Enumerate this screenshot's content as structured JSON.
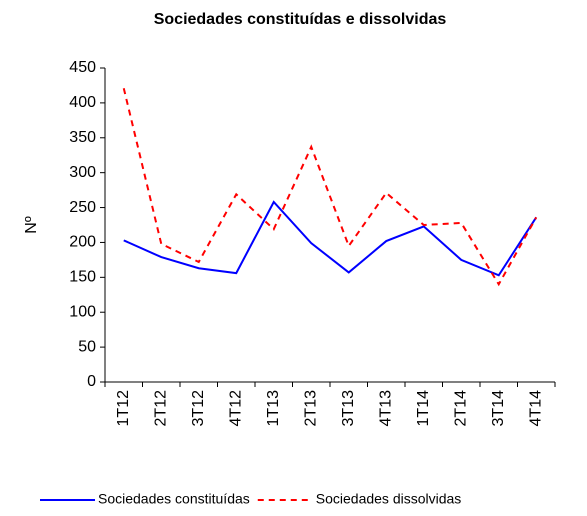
{
  "chart_data": {
    "type": "line",
    "title": "Sociedades constituídas e dissolvidas",
    "y_label": "Nº",
    "categories": [
      "1T12",
      "2T12",
      "3T12",
      "4T12",
      "1T13",
      "2T13",
      "3T13",
      "4T13",
      "1T14",
      "2T14",
      "3T14",
      "4T14"
    ],
    "series": [
      {
        "name": "Sociedades constituídas",
        "color": "#0000ff",
        "dash": false,
        "values": [
          203,
          179,
          163,
          156,
          258,
          199,
          157,
          202,
          223,
          175,
          153,
          236
        ]
      },
      {
        "name": "Sociedades dissolvidas",
        "color": "#ff0000",
        "dash": true,
        "values": [
          421,
          198,
          172,
          269,
          219,
          337,
          195,
          271,
          225,
          228,
          140,
          236
        ]
      }
    ],
    "ylim": [
      0,
      450
    ],
    "yticks": [
      0,
      50,
      100,
      150,
      200,
      250,
      300,
      350,
      400,
      450
    ],
    "grid": false
  }
}
